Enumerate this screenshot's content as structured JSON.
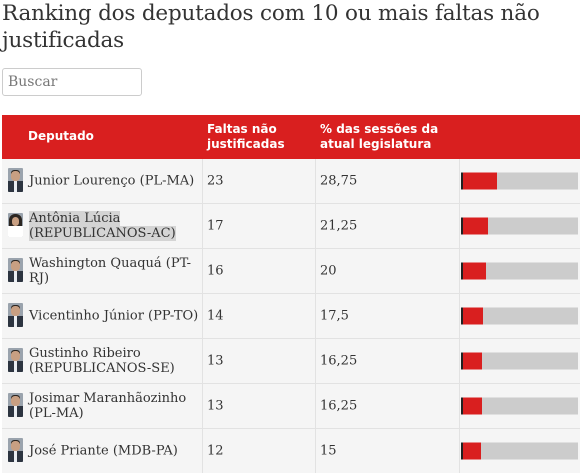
{
  "title": "Ranking dos deputados com 10 ou mais faltas não justificadas",
  "search": {
    "placeholder": "Buscar",
    "value": ""
  },
  "columns": {
    "deputado": "Deputado",
    "faltas": "Faltas não justificadas",
    "pct": "% das sessões da atual legislatura"
  },
  "colors": {
    "accent": "#d91f1f",
    "bar_track": "#cccccc"
  },
  "rows": [
    {
      "name": "Junior Lourenço (PL-MA)",
      "faltas": "23",
      "pct": "28,75",
      "pct_value": 28.75,
      "avatar": "male"
    },
    {
      "name": "Antônia Lúcia (REPUBLICANOS-AC)",
      "faltas": "17",
      "pct": "21,25",
      "pct_value": 21.25,
      "avatar": "female",
      "highlighted": true
    },
    {
      "name": "Washington Quaquá (PT-RJ)",
      "faltas": "16",
      "pct": "20",
      "pct_value": 20,
      "avatar": "male"
    },
    {
      "name": "Vicentinho Júnior (PP-TO)",
      "faltas": "14",
      "pct": "17,5",
      "pct_value": 17.5,
      "avatar": "male"
    },
    {
      "name": "Gustinho Ribeiro (REPUBLICANOS-SE)",
      "faltas": "13",
      "pct": "16,25",
      "pct_value": 16.25,
      "avatar": "male"
    },
    {
      "name": "Josimar Maranhãozinho (PL-MA)",
      "faltas": "13",
      "pct": "16,25",
      "pct_value": 16.25,
      "avatar": "male"
    },
    {
      "name": "José Priante (MDB-PA)",
      "faltas": "12",
      "pct": "15",
      "pct_value": 15,
      "avatar": "male"
    }
  ]
}
